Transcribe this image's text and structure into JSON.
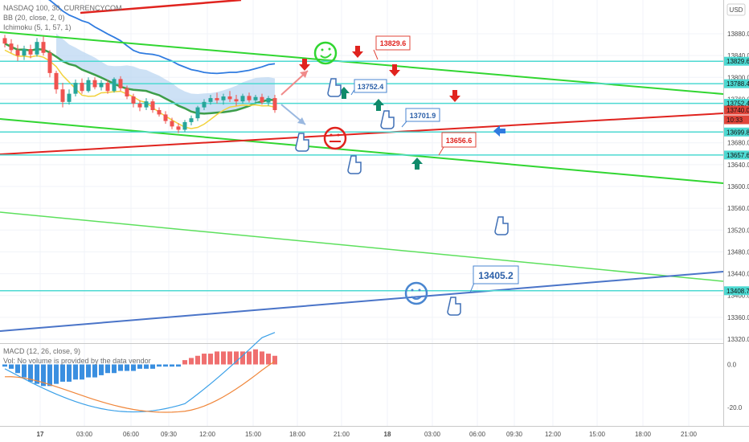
{
  "header": {
    "legend": [
      "NASDAQ 100, 30, CURRENCYCOM",
      "BB (20, close, 2, 0)",
      "Ichimoku (5, 1, 57, 1)"
    ],
    "currency_button": "USD"
  },
  "macd_pane": {
    "legend": [
      "MACD (12, 26, close, 9)",
      "Vol: No volume is provided by the data vendor"
    ],
    "ticks": [
      "0.0",
      "-20.0"
    ]
  },
  "price_axis": {
    "ticks": [
      "13880.0",
      "13840.0",
      "13800.0",
      "13760.0",
      "13720.0",
      "13680.0",
      "13640.0",
      "13600.0",
      "13560.0",
      "13520.0",
      "13480.0",
      "13440.0",
      "13400.0",
      "13360.0",
      "13320.0"
    ],
    "price_tags": [
      {
        "label": "13829.6",
        "color": "#4dd9d2"
      },
      {
        "label": "13788.4",
        "color": "#4dd9d2"
      },
      {
        "label": "13752.4",
        "color": "#4dd9d2"
      },
      {
        "label": "13740.0",
        "color": "#e0453a"
      },
      {
        "label": "10:33",
        "color": "#e0453a"
      },
      {
        "label": "13699.8",
        "color": "#4dd9d2"
      },
      {
        "label": "13657.6",
        "color": "#4dd9d2"
      },
      {
        "label": "13408.7",
        "color": "#4dd9d2"
      }
    ]
  },
  "time_axis": {
    "ticks": [
      "17",
      "03:00",
      "06:00",
      "09:30",
      "12:00",
      "15:00",
      "18:00",
      "21:00",
      "18",
      "03:00",
      "06:00",
      "09:30",
      "12:00",
      "15:00",
      "18:00",
      "21:00"
    ]
  },
  "annotations": [
    {
      "label": "13829.6",
      "color": "#e0453a"
    },
    {
      "label": "13752.4",
      "color": "#4a86d0"
    },
    {
      "label": "13701.9",
      "color": "#4a86d0"
    },
    {
      "label": "13656.6",
      "color": "#e0453a"
    },
    {
      "label": "13405.2",
      "color": "#4a86d0"
    }
  ],
  "colors": {
    "up_candle": "#26a69a",
    "down_candle": "#ef5350",
    "channel_green": "#31d631",
    "trend_red": "#e0231e",
    "trend_blue": "#4a74c8",
    "horizontal_cyan": "#4dd9d2",
    "bb_blue": "#2f7be0",
    "ichimoku_green": "#3d9e4a",
    "ichimoku_yellow": "#f2d23d",
    "macd_line": "#3aa0e8",
    "signal_line": "#f0863a"
  },
  "chart_data": {
    "type": "candlestick",
    "symbol": "NASDAQ 100",
    "interval": "30",
    "ylim": [
      13320,
      13900
    ],
    "x_ticks": [
      "17",
      "03:00",
      "06:00",
      "09:30",
      "12:00",
      "15:00",
      "18:00",
      "21:00",
      "18",
      "03:00",
      "06:00",
      "09:30",
      "12:00",
      "15:00",
      "18:00",
      "21:00"
    ],
    "candles": [
      {
        "o": 13872,
        "h": 13878,
        "l": 13855,
        "c": 13862
      },
      {
        "o": 13862,
        "h": 13870,
        "l": 13845,
        "c": 13850
      },
      {
        "o": 13850,
        "h": 13860,
        "l": 13830,
        "c": 13840
      },
      {
        "o": 13840,
        "h": 13858,
        "l": 13832,
        "c": 13852
      },
      {
        "o": 13852,
        "h": 13860,
        "l": 13835,
        "c": 13842
      },
      {
        "o": 13842,
        "h": 13872,
        "l": 13838,
        "c": 13865
      },
      {
        "o": 13865,
        "h": 13875,
        "l": 13840,
        "c": 13845
      },
      {
        "o": 13845,
        "h": 13850,
        "l": 13800,
        "c": 13808
      },
      {
        "o": 13808,
        "h": 13812,
        "l": 13770,
        "c": 13778
      },
      {
        "o": 13778,
        "h": 13790,
        "l": 13745,
        "c": 13755
      },
      {
        "o": 13755,
        "h": 13778,
        "l": 13750,
        "c": 13770
      },
      {
        "o": 13770,
        "h": 13796,
        "l": 13765,
        "c": 13790
      },
      {
        "o": 13790,
        "h": 13798,
        "l": 13770,
        "c": 13775
      },
      {
        "o": 13775,
        "h": 13800,
        "l": 13772,
        "c": 13795
      },
      {
        "o": 13795,
        "h": 13800,
        "l": 13778,
        "c": 13782
      },
      {
        "o": 13782,
        "h": 13795,
        "l": 13776,
        "c": 13790
      },
      {
        "o": 13790,
        "h": 13796,
        "l": 13770,
        "c": 13775
      },
      {
        "o": 13775,
        "h": 13800,
        "l": 13772,
        "c": 13797
      },
      {
        "o": 13797,
        "h": 13802,
        "l": 13775,
        "c": 13780
      },
      {
        "o": 13780,
        "h": 13785,
        "l": 13760,
        "c": 13765
      },
      {
        "o": 13765,
        "h": 13770,
        "l": 13745,
        "c": 13752
      },
      {
        "o": 13752,
        "h": 13758,
        "l": 13738,
        "c": 13745
      },
      {
        "o": 13745,
        "h": 13762,
        "l": 13740,
        "c": 13756
      },
      {
        "o": 13756,
        "h": 13760,
        "l": 13735,
        "c": 13740
      },
      {
        "o": 13740,
        "h": 13745,
        "l": 13728,
        "c": 13732
      },
      {
        "o": 13732,
        "h": 13738,
        "l": 13715,
        "c": 13720
      },
      {
        "o": 13720,
        "h": 13726,
        "l": 13705,
        "c": 13710
      },
      {
        "o": 13710,
        "h": 13716,
        "l": 13698,
        "c": 13704
      },
      {
        "o": 13704,
        "h": 13722,
        "l": 13700,
        "c": 13718
      },
      {
        "o": 13718,
        "h": 13730,
        "l": 13712,
        "c": 13725
      },
      {
        "o": 13725,
        "h": 13748,
        "l": 13720,
        "c": 13745
      },
      {
        "o": 13745,
        "h": 13760,
        "l": 13740,
        "c": 13755
      },
      {
        "o": 13755,
        "h": 13768,
        "l": 13750,
        "c": 13762
      },
      {
        "o": 13762,
        "h": 13772,
        "l": 13752,
        "c": 13758
      },
      {
        "o": 13758,
        "h": 13770,
        "l": 13750,
        "c": 13765
      },
      {
        "o": 13765,
        "h": 13775,
        "l": 13755,
        "c": 13760
      },
      {
        "o": 13760,
        "h": 13768,
        "l": 13748,
        "c": 13756
      },
      {
        "o": 13756,
        "h": 13770,
        "l": 13752,
        "c": 13766
      },
      {
        "o": 13766,
        "h": 13772,
        "l": 13754,
        "c": 13758
      },
      {
        "o": 13758,
        "h": 13768,
        "l": 13752,
        "c": 13764
      },
      {
        "o": 13764,
        "h": 13770,
        "l": 13750,
        "c": 13754
      },
      {
        "o": 13754,
        "h": 13766,
        "l": 13748,
        "c": 13762
      },
      {
        "o": 13762,
        "h": 13768,
        "l": 13735,
        "c": 13740
      }
    ],
    "annotated_prices": [
      13829.6,
      13752.4,
      13701.9,
      13656.6,
      13405.2
    ],
    "horizontal_levels": [
      13829.6,
      13788.4,
      13752.4,
      13699.8,
      13657.6,
      13408.7
    ],
    "last_price": 13740.0,
    "macd": {
      "ylim": [
        -27,
        8
      ],
      "ticks": [
        0,
        -20
      ],
      "histogram": [
        -1,
        -2,
        -4,
        -6,
        -8,
        -9,
        -10,
        -10,
        -9,
        -8,
        -8,
        -7,
        -7,
        -6,
        -6,
        -5,
        -4,
        -4,
        -3,
        -3,
        -3,
        -2,
        -2,
        -2,
        -1,
        -1,
        -1,
        -1,
        2,
        3,
        4,
        5,
        5,
        6,
        6,
        6,
        6,
        6,
        6,
        7,
        6,
        5,
        4
      ]
    }
  }
}
